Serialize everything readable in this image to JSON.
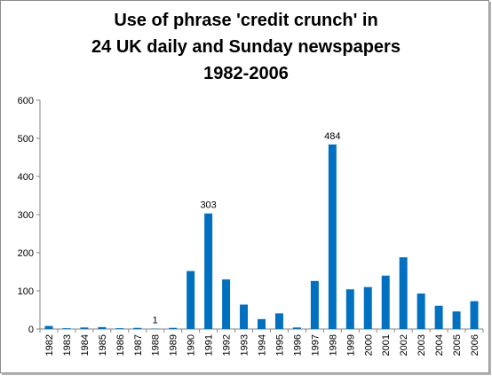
{
  "chart_data": {
    "type": "bar",
    "title_lines": [
      "Use of phrase 'credit crunch' in",
      "24 UK daily and Sunday newspapers",
      "1982-2006"
    ],
    "categories": [
      "1982",
      "1983",
      "1984",
      "1985",
      "1986",
      "1987",
      "1988",
      "1989",
      "1990",
      "1991",
      "1992",
      "1993",
      "1994",
      "1995",
      "1996",
      "1997",
      "1998",
      "1999",
      "2000",
      "2001",
      "2002",
      "2003",
      "2004",
      "2005",
      "2006"
    ],
    "values": [
      8,
      2,
      4,
      5,
      2,
      3,
      1,
      3,
      152,
      303,
      130,
      64,
      26,
      41,
      4,
      126,
      484,
      104,
      110,
      140,
      188,
      93,
      61,
      46,
      73
    ],
    "data_labels": [
      {
        "category": "1988",
        "text": "1"
      },
      {
        "category": "1991",
        "text": "303"
      },
      {
        "category": "1998",
        "text": "484"
      }
    ],
    "ylim": [
      0,
      600
    ],
    "yticks": [
      0,
      100,
      200,
      300,
      400,
      500,
      600
    ],
    "xlabel": "",
    "ylabel": "",
    "grid": false,
    "legend": "none",
    "bar_color": "#0070c0",
    "axis_color": "#868686"
  }
}
